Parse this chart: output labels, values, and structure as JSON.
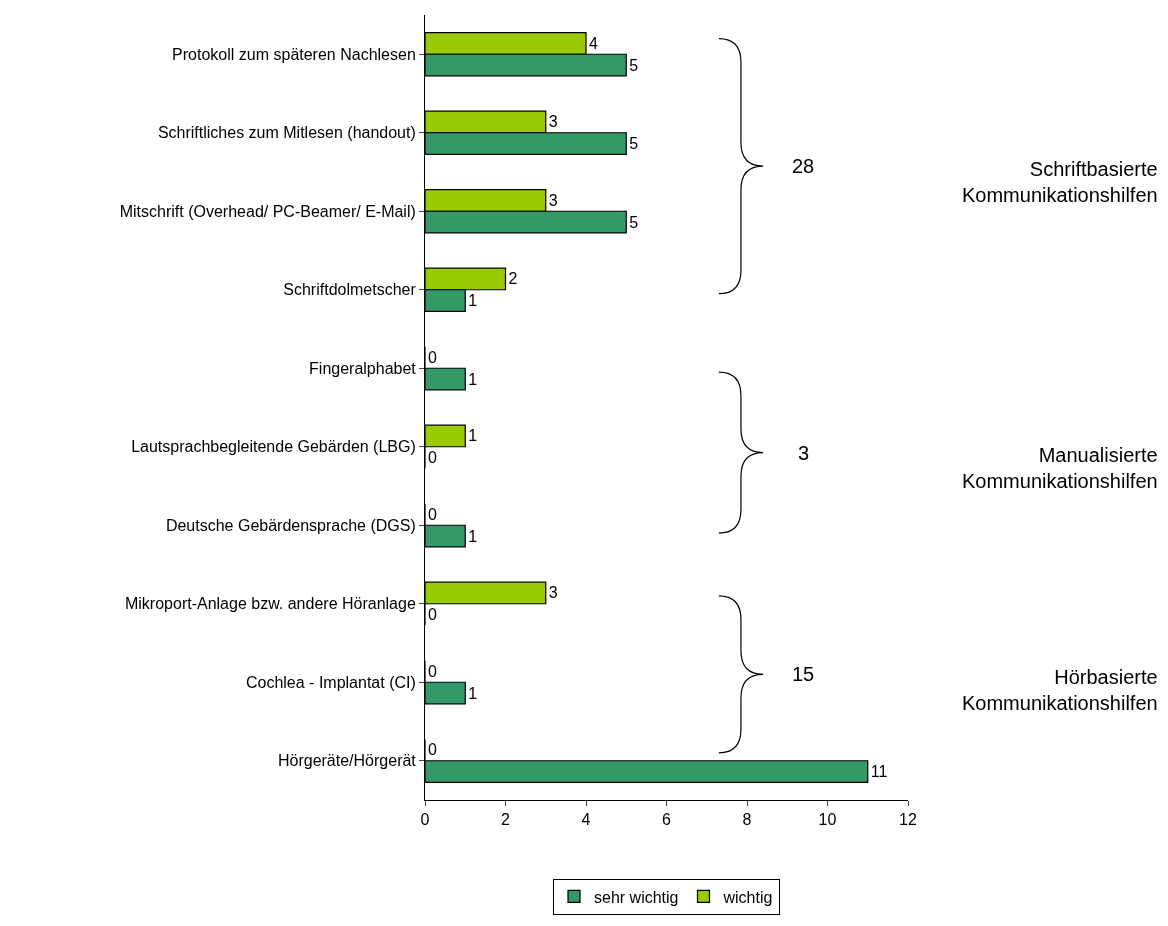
{
  "chart_data": {
    "type": "bar",
    "orientation": "horizontal",
    "categories": [
      "Protokoll zum späteren Nachlesen",
      "Schriftliches zum Mitlesen (handout)",
      "Mitschrift (Overhead/ PC-Beamer/ E-Mail)",
      "Schriftdolmetscher",
      "Fingeralphabet",
      "Lautsprachbegleitende Gebärden (LBG)",
      "Deutsche Gebärdensprache (DGS)",
      "Mikroport-Anlage bzw. andere Höranlage",
      "Cochlea - Implantat (CI)",
      "Hörgeräte/Hörgerät"
    ],
    "series": [
      {
        "name": "sehr wichtig",
        "color": "#339966",
        "values": [
          5,
          5,
          5,
          1,
          1,
          0,
          1,
          0,
          1,
          11
        ]
      },
      {
        "name": "wichtig",
        "color": "#99cc00",
        "values": [
          4,
          3,
          3,
          2,
          0,
          1,
          0,
          3,
          0,
          0
        ]
      }
    ],
    "xlim": [
      0,
      12
    ],
    "xticks": [
      0,
      2,
      4,
      6,
      8,
      10,
      12
    ],
    "legend": "bottom",
    "data_labels": true,
    "annotations": [
      "28",
      "Schriftbasierte Kommunikationshilfen",
      "3",
      "Manualisierte Kommunikationshilfen",
      "15",
      "Hörbasierte Kommunikationshilfen"
    ]
  }
}
